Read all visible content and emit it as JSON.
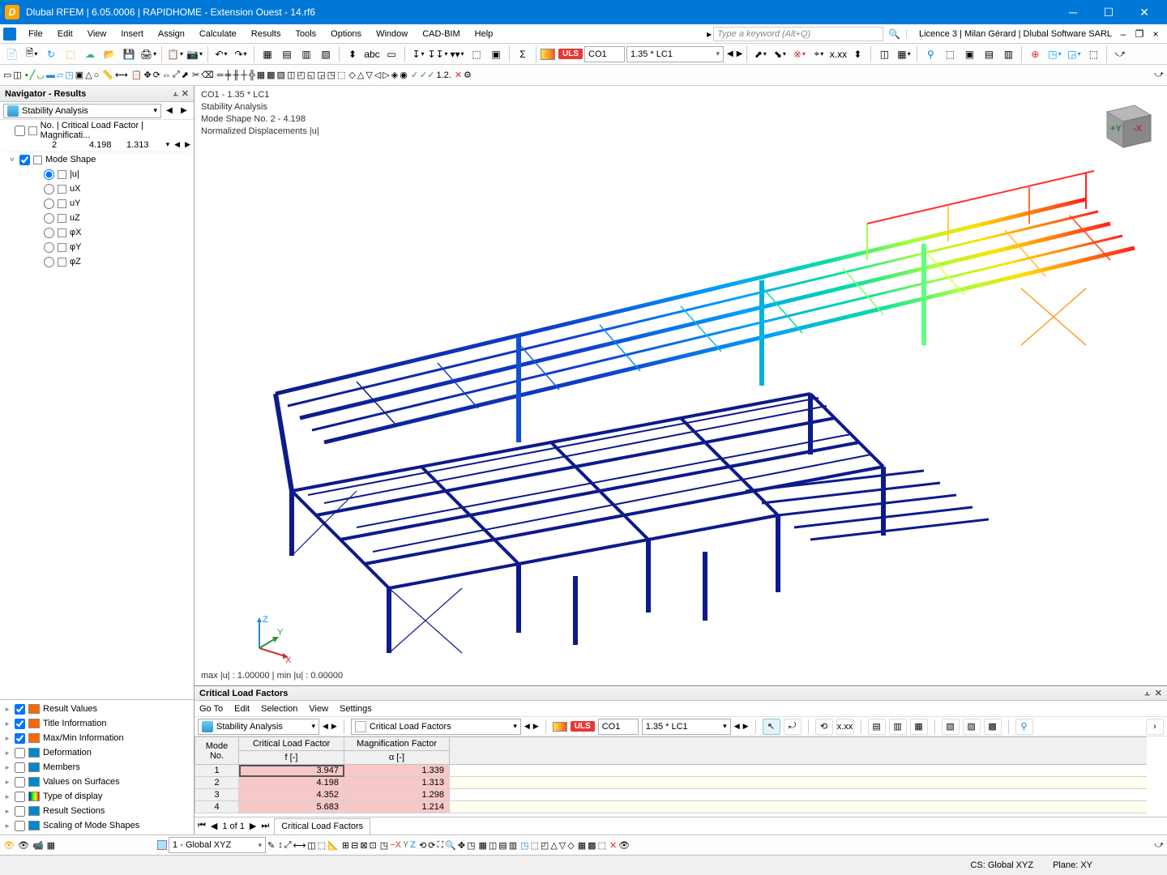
{
  "window": {
    "title": "Dlubal RFEM | 6.05.0006 | RAPIDHOME - Extension Ouest - 14.rf6",
    "icon_letter": "D"
  },
  "menu": {
    "items": [
      "File",
      "Edit",
      "View",
      "Insert",
      "Assign",
      "Calculate",
      "Results",
      "Tools",
      "Options",
      "Window",
      "CAD-BIM",
      "Help"
    ],
    "search_placeholder": "Type a keyword (Alt+Q)",
    "licence": "Licence 3 | Milan Gérard | Dlubal Software SARL"
  },
  "toolbar1": {
    "uls": "ULS",
    "co_label": "CO1",
    "lc_label": "1.35 * LC1"
  },
  "navigator": {
    "title": "Navigator - Results",
    "combo": "Stability Analysis",
    "no_label": "No. | Critical Load Factor | Magnificati...",
    "row": {
      "no": "2",
      "clf": "4.198",
      "mf": "1.313"
    },
    "mode_shape": "Mode Shape",
    "components": [
      "|u|",
      "uX",
      "uY",
      "uZ",
      "φX",
      "φY",
      "φZ"
    ],
    "options": [
      {
        "label": "Result Values",
        "checked": true,
        "color": "#ff6600"
      },
      {
        "label": "Title Information",
        "checked": true,
        "color": "#ff6600"
      },
      {
        "label": "Max/Min Information",
        "checked": true,
        "color": "#ff6600"
      },
      {
        "label": "Deformation",
        "checked": false,
        "color": "#0088cc"
      },
      {
        "label": "Members",
        "checked": false,
        "color": "#0088cc"
      },
      {
        "label": "Values on Surfaces",
        "checked": false,
        "color": "#0088cc"
      },
      {
        "label": "Type of display",
        "checked": false,
        "color": "gradient"
      },
      {
        "label": "Result Sections",
        "checked": false,
        "color": "#0088cc"
      },
      {
        "label": "Scaling of Mode Shapes",
        "checked": false,
        "color": "#0088cc"
      }
    ]
  },
  "viewport": {
    "lines": [
      "CO1 - 1.35 * LC1",
      "Stability Analysis",
      "Mode Shape No. 2 - 4.198",
      "Normalized Displacements |u|"
    ],
    "footer": "max |u| : 1.00000 | min |u| : 0.00000",
    "triad": {
      "x": "X",
      "y": "Y",
      "z": "Z"
    },
    "cube": {
      "py": "+Y",
      "mx": "-X"
    },
    "colors": {
      "low": "#0d1a8c",
      "mid_low": "#0080ff",
      "mid": "#00e0c0",
      "mid_high": "#c0ff40",
      "high": "#ffc000",
      "max": "#ff2020"
    }
  },
  "critical_panel": {
    "title": "Critical Load Factors",
    "menu": [
      "Go To",
      "Edit",
      "Selection",
      "View",
      "Settings"
    ],
    "combo1": "Stability Analysis",
    "combo2": "Critical Load Factors",
    "uls": "ULS",
    "co": "CO1",
    "lc": "1.35 * LC1",
    "head": {
      "mode": "Mode\nNo.",
      "clf": "Critical Load Factor\nf [-]",
      "mf": "Magnification Factor\nα [-]"
    },
    "rows": [
      {
        "no": "1",
        "clf": "3.947",
        "mf": "1.339",
        "selected": true
      },
      {
        "no": "2",
        "clf": "4.198",
        "mf": "1.313"
      },
      {
        "no": "3",
        "clf": "4.352",
        "mf": "1.298"
      },
      {
        "no": "4",
        "clf": "5.683",
        "mf": "1.214"
      }
    ],
    "pager": "1 of 1",
    "tab": "Critical Load Factors"
  },
  "bottom": {
    "combo": "1 - Global XYZ"
  },
  "status": {
    "cs": "CS: Global XYZ",
    "plane": "Plane: XY"
  }
}
